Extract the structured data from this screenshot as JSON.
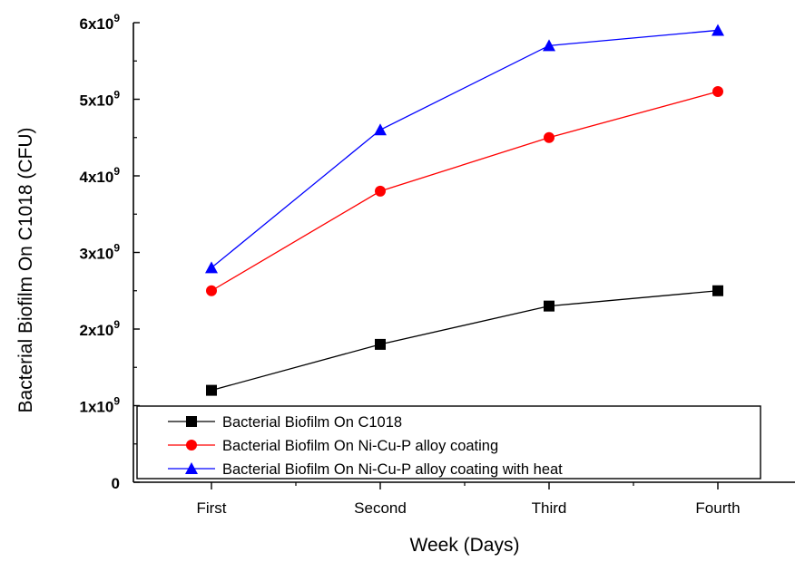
{
  "chart_data": {
    "type": "line",
    "categories": [
      "First",
      "Second",
      "Third",
      "Fourth"
    ],
    "series": [
      {
        "name": "Bacterial Biofilm On C1018",
        "values": [
          1200000000.0,
          1800000000.0,
          2300000000.0,
          2500000000.0
        ],
        "color": "#000000",
        "marker": "square"
      },
      {
        "name": "Bacterial Biofilm On Ni-Cu-P alloy coating",
        "values": [
          2500000000.0,
          3800000000.0,
          4500000000.0,
          5100000000.0
        ],
        "color": "#ff0000",
        "marker": "circle"
      },
      {
        "name": "Bacterial Biofilm On Ni-Cu-P alloy coating with heat",
        "values": [
          2800000000.0,
          4600000000.0,
          5700000000.0,
          5900000000.0
        ],
        "color": "#0000ff",
        "marker": "triangle"
      }
    ],
    "xlabel": "Week (Days)",
    "ylabel": "Bacterial Biofilm On C1018 (CFU)",
    "ylim": [
      0,
      6000000000.0
    ],
    "yticks": [
      {
        "value": 0,
        "base": "0",
        "exp": ""
      },
      {
        "value": 1000000000.0,
        "base": "1x10",
        "exp": "9"
      },
      {
        "value": 2000000000.0,
        "base": "2x10",
        "exp": "9"
      },
      {
        "value": 3000000000.0,
        "base": "3x10",
        "exp": "9"
      },
      {
        "value": 4000000000.0,
        "base": "4x10",
        "exp": "9"
      },
      {
        "value": 5000000000.0,
        "base": "5x10",
        "exp": "9"
      },
      {
        "value": 6000000000.0,
        "base": "6x10",
        "exp": "9"
      }
    ],
    "grid": false,
    "legend_position": "bottom-left"
  }
}
